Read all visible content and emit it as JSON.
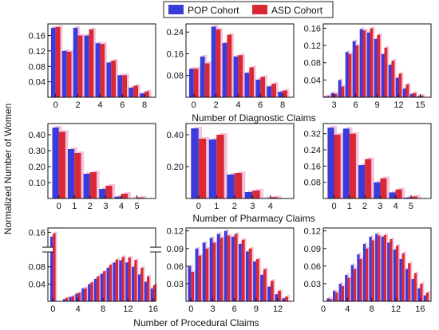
{
  "legend": {
    "placement": "top-center",
    "entries": [
      {
        "label": "POP Cohort",
        "color": "#3b3bdc"
      },
      {
        "label": "ASD Cohort",
        "color": "#dc2834"
      }
    ]
  },
  "ylabel": "Normalized Number of Women",
  "row_xlabels": [
    "Number of Diagnostic Claims",
    "Number of Pharmacy Claims",
    "Number of Procedural Claims"
  ],
  "colors": {
    "pop": "#3b3bdc",
    "asd": "#dc2834",
    "shadow": "#f2c4de"
  },
  "chart_data": [
    {
      "type": "bar",
      "row": 0,
      "col": 0,
      "x": [
        0,
        1,
        2,
        3,
        4,
        5,
        6,
        7,
        8
      ],
      "series": [
        {
          "name": "POP Cohort",
          "values": [
            0.18,
            0.12,
            0.18,
            0.16,
            0.14,
            0.09,
            0.057,
            0.025,
            0.01
          ]
        },
        {
          "name": "ASD Cohort",
          "values": [
            0.182,
            0.118,
            0.16,
            0.176,
            0.138,
            0.095,
            0.057,
            0.03,
            0.015
          ]
        }
      ],
      "xlim": [
        -0.7,
        9
      ],
      "ylim": [
        0,
        0.19
      ],
      "xticks": [
        0,
        2,
        4,
        6,
        8
      ],
      "yticks": [
        0.04,
        0.08,
        0.12,
        0.16
      ],
      "ytick_labels": [
        "0.04",
        "0.08",
        "0.12",
        "0.16"
      ]
    },
    {
      "type": "bar",
      "row": 0,
      "col": 1,
      "x": [
        0,
        1,
        2,
        3,
        4,
        5,
        6,
        7,
        8
      ],
      "series": [
        {
          "name": "POP Cohort",
          "values": [
            0.105,
            0.15,
            0.26,
            0.2,
            0.15,
            0.09,
            0.065,
            0.04,
            0.02
          ]
        },
        {
          "name": "ASD Cohort",
          "values": [
            0.105,
            0.125,
            0.25,
            0.23,
            0.155,
            0.11,
            0.075,
            0.05,
            0.025
          ]
        }
      ],
      "xlim": [
        -0.7,
        9
      ],
      "ylim": [
        0,
        0.27
      ],
      "xticks": [
        0,
        2,
        4,
        6,
        8
      ],
      "yticks": [
        0.08,
        0.16,
        0.24
      ],
      "ytick_labels": [
        "0.08",
        "0.16",
        "0.24"
      ]
    },
    {
      "type": "bar",
      "row": 0,
      "col": 2,
      "x": [
        2,
        3,
        4,
        5,
        6,
        7,
        8,
        9,
        10,
        11,
        12,
        13,
        14,
        15
      ],
      "series": [
        {
          "name": "POP Cohort",
          "values": [
            0.002,
            0.01,
            0.04,
            0.105,
            0.13,
            0.158,
            0.15,
            0.135,
            0.1,
            0.075,
            0.045,
            0.02,
            0.008,
            0.003
          ]
        },
        {
          "name": "ASD Cohort",
          "values": [
            0.003,
            0.008,
            0.025,
            0.1,
            0.12,
            0.155,
            0.16,
            0.145,
            0.115,
            0.085,
            0.055,
            0.03,
            0.01,
            0.004
          ]
        }
      ],
      "xlim": [
        1.5,
        16.5
      ],
      "ylim": [
        0,
        0.17
      ],
      "xticks": [
        3,
        6,
        9,
        12,
        15
      ],
      "yticks": [
        0.04,
        0.08,
        0.12,
        0.16
      ],
      "ytick_labels": [
        "0.04",
        "0.08",
        "0.12",
        "0.16"
      ]
    },
    {
      "type": "bar",
      "row": 1,
      "col": 0,
      "x": [
        0,
        1,
        2,
        3,
        4,
        5
      ],
      "series": [
        {
          "name": "POP Cohort",
          "values": [
            0.445,
            0.31,
            0.155,
            0.06,
            0.012,
            0.002
          ]
        },
        {
          "name": "ASD Cohort",
          "values": [
            0.418,
            0.285,
            0.165,
            0.08,
            0.03,
            0.006
          ]
        }
      ],
      "xlim": [
        -0.7,
        6.2
      ],
      "ylim": [
        0,
        0.47
      ],
      "xticks": [
        0,
        1,
        2,
        3,
        4,
        5
      ],
      "yticks": [
        0.1,
        0.2,
        0.3,
        0.4
      ],
      "ytick_labels": [
        "0.10",
        "0.20",
        "0.30",
        "0.40"
      ]
    },
    {
      "type": "bar",
      "row": 1,
      "col": 1,
      "x": [
        0,
        1,
        2,
        3,
        4
      ],
      "series": [
        {
          "name": "POP Cohort",
          "values": [
            0.44,
            0.37,
            0.15,
            0.04,
            0.003
          ]
        },
        {
          "name": "ASD Cohort",
          "values": [
            0.375,
            0.4,
            0.16,
            0.05,
            0.008
          ]
        }
      ],
      "xlim": [
        -0.7,
        5.3
      ],
      "ylim": [
        0,
        0.47
      ],
      "xticks": [
        0,
        1,
        2,
        3,
        4
      ],
      "yticks": [
        0.2,
        0.4
      ],
      "ytick_labels": [
        "0.20",
        "0.40"
      ]
    },
    {
      "type": "bar",
      "row": 1,
      "col": 2,
      "x": [
        0,
        1,
        2,
        3,
        4,
        5
      ],
      "series": [
        {
          "name": "POP Cohort",
          "values": [
            0.35,
            0.345,
            0.165,
            0.08,
            0.03,
            0.005
          ]
        },
        {
          "name": "ASD Cohort",
          "values": [
            0.315,
            0.32,
            0.195,
            0.1,
            0.045,
            0.01
          ]
        }
      ],
      "xlim": [
        -0.7,
        6.3
      ],
      "ylim": [
        0,
        0.37
      ],
      "xticks": [
        0,
        1,
        2,
        3,
        4,
        5
      ],
      "yticks": [
        0.08,
        0.16,
        0.24,
        0.32
      ],
      "ytick_labels": [
        "0.08",
        "0.16",
        "0.24",
        "0.32"
      ]
    },
    {
      "type": "bar",
      "row": 2,
      "col": 0,
      "broken_axis": true,
      "x": [
        0,
        2,
        3,
        4,
        5,
        6,
        7,
        8,
        9,
        10,
        11,
        12,
        13,
        14,
        15,
        16
      ],
      "series": [
        {
          "name": "POP Cohort",
          "values": [
            0.15,
            0.005,
            0.01,
            0.018,
            0.03,
            0.04,
            0.052,
            0.064,
            0.078,
            0.09,
            0.095,
            0.09,
            0.08,
            0.062,
            0.045,
            0.03
          ]
        },
        {
          "name": "ASD Cohort",
          "values": [
            0.158,
            0.008,
            0.012,
            0.02,
            0.03,
            0.044,
            0.058,
            0.07,
            0.085,
            0.097,
            0.103,
            0.102,
            0.096,
            0.078,
            0.058,
            0.038
          ]
        }
      ],
      "xlim": [
        -0.8,
        16.4
      ],
      "ylim": [
        0,
        0.17
      ],
      "xticks": [
        0,
        4,
        8,
        12,
        16
      ],
      "yticks": [
        0.04,
        0.08,
        0.12,
        0.16
      ],
      "ytick_labels": [
        "0.04",
        "0.08",
        "",
        "0.16"
      ]
    },
    {
      "type": "bar",
      "row": 2,
      "col": 1,
      "x": [
        0,
        1,
        2,
        3,
        4,
        5,
        6,
        7,
        8,
        9,
        10,
        11,
        12,
        13
      ],
      "series": [
        {
          "name": "POP Cohort",
          "values": [
            0.06,
            0.09,
            0.1,
            0.108,
            0.115,
            0.12,
            0.11,
            0.098,
            0.085,
            0.068,
            0.045,
            0.025,
            0.012,
            0.005
          ]
        },
        {
          "name": "ASD Cohort",
          "values": [
            0.05,
            0.078,
            0.09,
            0.1,
            0.108,
            0.112,
            0.115,
            0.105,
            0.09,
            0.072,
            0.055,
            0.035,
            0.018,
            0.008
          ]
        }
      ],
      "xlim": [
        -0.7,
        14.2
      ],
      "ylim": [
        0,
        0.125
      ],
      "xticks": [
        0,
        3,
        6,
        9,
        12
      ],
      "yticks": [
        0.03,
        0.06,
        0.09,
        0.12
      ],
      "ytick_labels": [
        "0.03",
        "0.06",
        "0.09",
        "0.12"
      ]
    },
    {
      "type": "bar",
      "row": 2,
      "col": 2,
      "x": [
        1,
        2,
        3,
        4,
        5,
        6,
        7,
        8,
        9,
        10,
        11,
        12,
        13,
        14,
        15,
        16,
        17
      ],
      "series": [
        {
          "name": "POP Cohort",
          "values": [
            0.005,
            0.018,
            0.03,
            0.045,
            0.062,
            0.08,
            0.098,
            0.11,
            0.115,
            0.11,
            0.1,
            0.088,
            0.072,
            0.055,
            0.038,
            0.022,
            0.01
          ]
        },
        {
          "name": "ASD Cohort",
          "values": [
            0.004,
            0.015,
            0.026,
            0.04,
            0.055,
            0.072,
            0.09,
            0.104,
            0.112,
            0.113,
            0.106,
            0.095,
            0.082,
            0.065,
            0.048,
            0.03,
            0.015
          ]
        }
      ],
      "xlim": [
        0,
        17.8
      ],
      "ylim": [
        0,
        0.125
      ],
      "xticks": [
        0,
        4,
        8,
        12,
        16
      ],
      "yticks": [
        0.03,
        0.06,
        0.09,
        0.12
      ],
      "ytick_labels": [
        "0.03",
        "0.06",
        "0.09",
        "0.12"
      ]
    }
  ]
}
